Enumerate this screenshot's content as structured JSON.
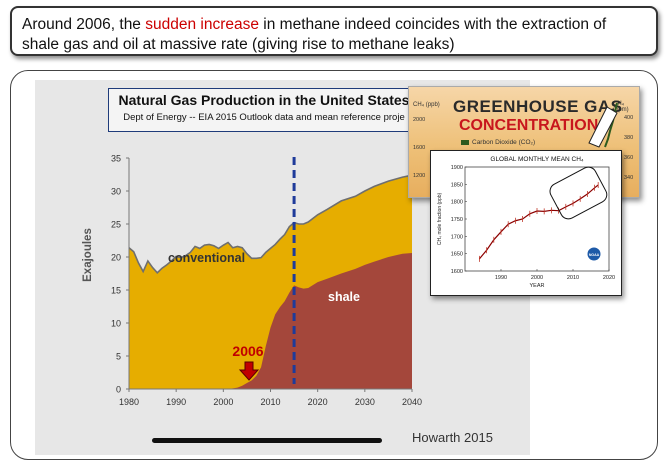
{
  "callout": {
    "text_before": "Around 2006, the ",
    "highlight": "sudden increase",
    "text_after": " in methane indeed coincides with the extraction of shale gas and oil at massive rate (giving rise to methane leaks)",
    "highlight_color": "#cc0000"
  },
  "slide": {
    "credit": "Howarth 2015"
  },
  "chart_data": [
    {
      "type": "area",
      "title": "Natural Gas Production in the United States",
      "subtitle": "Dept of Energy -- EIA 2015 Outlook data and mean reference proje",
      "ylabel": "Exajoules",
      "xlabel": "",
      "xlim": [
        1980,
        2040
      ],
      "ylim": [
        0,
        35
      ],
      "xticks": [
        "1980",
        "1990",
        "2000",
        "2010",
        "2020",
        "2030",
        "2040"
      ],
      "yticks": [
        "0",
        "5",
        "10",
        "15",
        "20",
        "25",
        "30",
        "35"
      ],
      "x": [
        1980,
        1981,
        1982,
        1983,
        1984,
        1985,
        1986,
        1987,
        1988,
        1989,
        1990,
        1991,
        1992,
        1993,
        1994,
        1995,
        1996,
        1997,
        1998,
        1999,
        2000,
        2001,
        2002,
        2003,
        2004,
        2005,
        2006,
        2007,
        2008,
        2009,
        2010,
        2011,
        2012,
        2013,
        2014,
        2015,
        2016,
        2017,
        2018,
        2020,
        2022,
        2025,
        2028,
        2030,
        2032,
        2035,
        2038,
        2040
      ],
      "series": [
        {
          "name": "conventional",
          "color": "#e6ad00",
          "values": [
            21.4,
            20.8,
            19.1,
            17.8,
            19.4,
            18.4,
            17.6,
            18.3,
            18.8,
            19.4,
            20.1,
            19.9,
            20.2,
            20.7,
            21.6,
            21.3,
            21.8,
            21.9,
            21.7,
            21.3,
            21.8,
            22.2,
            21.3,
            21.4,
            20.9,
            19.6,
            18.5,
            17.8,
            16.6,
            14.2,
            12.0,
            10.6,
            10.3,
            10.1,
            10.0,
            9.5,
            9.6,
            9.8,
            10.0,
            10.2,
            10.5,
            11.0,
            11.0,
            11.2,
            11.4,
            11.5,
            11.6,
            11.8
          ]
        },
        {
          "name": "shale",
          "color": "#a4473b",
          "values": [
            0,
            0,
            0,
            0,
            0,
            0,
            0,
            0,
            0,
            0,
            0,
            0,
            0,
            0,
            0,
            0,
            0,
            0,
            0,
            0,
            0,
            0,
            0.1,
            0.2,
            0.5,
            0.9,
            1.3,
            2.0,
            3.3,
            6.5,
            9.3,
            11.3,
            12.4,
            13.3,
            14.6,
            15.7,
            15.4,
            15.2,
            15.3,
            16.2,
            16.7,
            17.5,
            18.2,
            18.8,
            19.3,
            20.0,
            20.5,
            20.6
          ]
        }
      ],
      "annotations": [
        {
          "text": "conventional",
          "color": "#333333"
        },
        {
          "text": "shale",
          "color": "#ffffff"
        },
        {
          "text": "2006",
          "color": "#c00000"
        }
      ],
      "vertical_marker_x": 2015,
      "grid": false
    },
    {
      "type": "line",
      "title": "GLOBAL MONTHLY MEAN CH₄",
      "ylabel": "CH₄ mole fraction (ppb)",
      "xlabel": "YEAR",
      "xlim": [
        1980,
        2020
      ],
      "ylim": [
        1600,
        1900
      ],
      "xticks": [
        "1990",
        "2000",
        "2010",
        "2020"
      ],
      "yticks": [
        "1600",
        "1650",
        "1700",
        "1750",
        "1800",
        "1850",
        "1900"
      ],
      "x": [
        1984,
        1986,
        1988,
        1990,
        1992,
        1994,
        1996,
        1998,
        2000,
        2002,
        2004,
        2006,
        2008,
        2010,
        2012,
        2014,
        2016,
        2017
      ],
      "series": [
        {
          "name": "",
          "color": "#8b0000",
          "values": [
            1635,
            1660,
            1690,
            1713,
            1735,
            1745,
            1750,
            1765,
            1773,
            1772,
            1775,
            1774,
            1785,
            1795,
            1808,
            1822,
            1840,
            1848
          ]
        }
      ]
    }
  ],
  "ghg_chart": {
    "title_line1": "GREENHOUSE GAS",
    "title_line2": "CONCENTRATIONS",
    "legend_item": "Carbon Dioxide (CO₂)",
    "left_axis": "CH₄ (ppb)",
    "right_axis": "CH₄ (ppm)",
    "left_ticks": [
      "2000",
      "1600",
      "1200"
    ],
    "right_ticks": [
      "400",
      "380",
      "360",
      "340"
    ],
    "title_color": "#c8161d"
  },
  "noaa_logo": "NOAA"
}
